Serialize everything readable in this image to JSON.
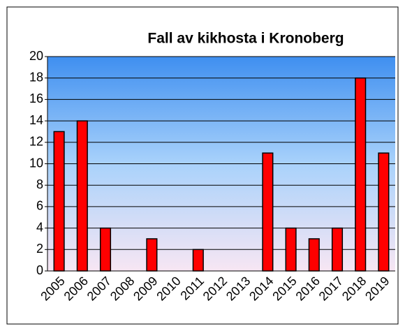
{
  "chart_data": {
    "type": "bar",
    "title": "Fall av kikhosta i Kronoberg",
    "categories": [
      "2005",
      "2006",
      "2007",
      "2008",
      "2009",
      "2010",
      "2011",
      "2012",
      "2013",
      "2014",
      "2015",
      "2016",
      "2017",
      "2018",
      "2019"
    ],
    "values": [
      13,
      14,
      4,
      0,
      3,
      0,
      2,
      0,
      0,
      11,
      4,
      3,
      4,
      18,
      11
    ],
    "color": "#ff0000",
    "ylim": [
      0,
      20
    ],
    "yticks": [
      0,
      2,
      4,
      6,
      8,
      10,
      12,
      14,
      16,
      18,
      20
    ],
    "grid": true
  }
}
